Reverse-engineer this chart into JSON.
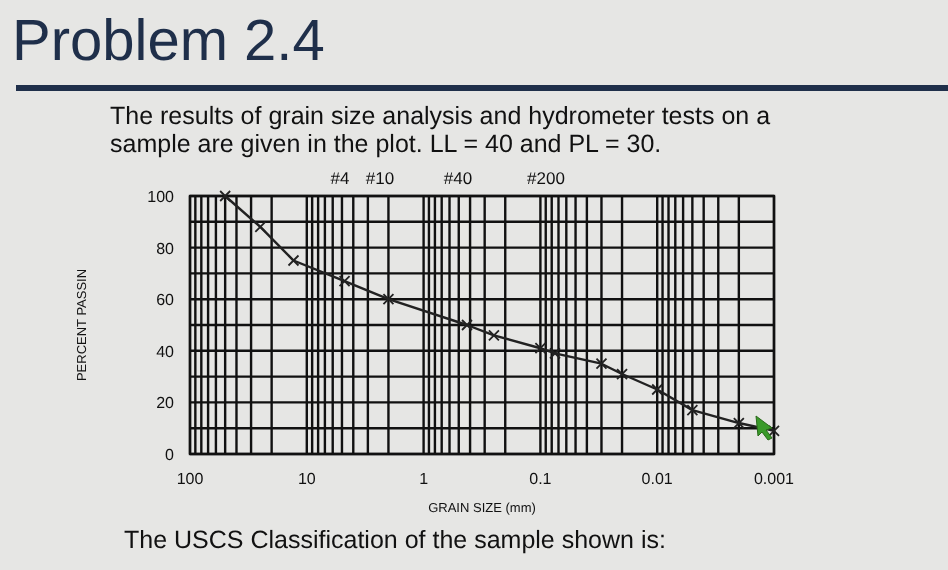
{
  "chart_data": {
    "type": "line",
    "title": "Problem 2.4",
    "subtitle": "The results of grain size analysis and hydrometer tests on a sample are given in the plot.  LL = 40 and PL = 30.",
    "xlabel": "GRAIN SIZE (mm)",
    "ylabel": "PERCENT PASSIN",
    "annotations": [
      "#4",
      "#10",
      "#40",
      "#200",
      "The USCS Classification of the sample shown is:"
    ],
    "log": "x",
    "grid": true,
    "marker": "cross",
    "line_style": "solid",
    "xlim": [
      100,
      0.001
    ],
    "ylim": [
      0,
      100
    ],
    "xticks": [
      100,
      {
        "value": 90,
        "label": null
      },
      {
        "value": 80,
        "label": null
      },
      {
        "value": 70,
        "label": null
      },
      {
        "value": 60,
        "label": null
      },
      {
        "value": 50,
        "label": null
      },
      {
        "value": 40,
        "label": null
      },
      {
        "value": 30,
        "label": null
      },
      {
        "value": 20,
        "label": null
      },
      10,
      {
        "value": 9,
        "label": null
      },
      {
        "value": 8,
        "label": null
      },
      {
        "value": 7,
        "label": null
      },
      {
        "value": 6,
        "label": null
      },
      {
        "value": 5,
        "label": null
      },
      {
        "value": 4,
        "label": null
      },
      {
        "value": 3,
        "label": null
      },
      {
        "value": 2,
        "label": null
      },
      1,
      {
        "value": 0.9,
        "label": null
      },
      {
        "value": 0.8,
        "label": null
      },
      {
        "value": 0.7,
        "label": null
      },
      {
        "value": 0.6,
        "label": null
      },
      {
        "value": 0.5,
        "label": null
      },
      {
        "value": 0.4,
        "label": null
      },
      {
        "value": 0.3,
        "label": null
      },
      {
        "value": 0.2,
        "label": null
      },
      0.1,
      {
        "value": 0.09,
        "label": null
      },
      {
        "value": 0.08,
        "label": null
      },
      {
        "value": 0.07,
        "label": null
      },
      {
        "value": 0.06,
        "label": null
      },
      {
        "value": 0.05,
        "label": null
      },
      {
        "value": 0.04,
        "label": null
      },
      {
        "value": 0.03,
        "label": null
      },
      {
        "value": 0.02,
        "label": null
      },
      0.01,
      {
        "value": 0.009,
        "label": null
      },
      {
        "value": 0.008,
        "label": null
      },
      {
        "value": 0.007,
        "label": null
      },
      {
        "value": 0.006,
        "label": null
      },
      {
        "value": 0.005,
        "label": null
      },
      {
        "value": 0.004,
        "label": null
      },
      {
        "value": 0.003,
        "label": null
      },
      {
        "value": 0.002,
        "label": null
      },
      0.001
    ],
    "yticks": [
      0,
      {
        "value": 10,
        "label": null
      },
      20,
      {
        "value": 30,
        "label": null
      },
      40,
      {
        "value": 50,
        "label": null
      },
      60,
      {
        "value": 70,
        "label": null
      },
      80,
      {
        "value": 90,
        "label": null
      },
      100
    ],
    "x": [
      50,
      25,
      13,
      4.75,
      2,
      0.425,
      0.25,
      0.1,
      0.075,
      0.03,
      0.02,
      0.01,
      0.005,
      0.002,
      0.001
    ],
    "series": [
      {
        "color": "#222222",
        "values": [
          100,
          88,
          75,
          67,
          60,
          50,
          46,
          41,
          39,
          35,
          31,
          25,
          17,
          12,
          9
        ]
      }
    ]
  }
}
